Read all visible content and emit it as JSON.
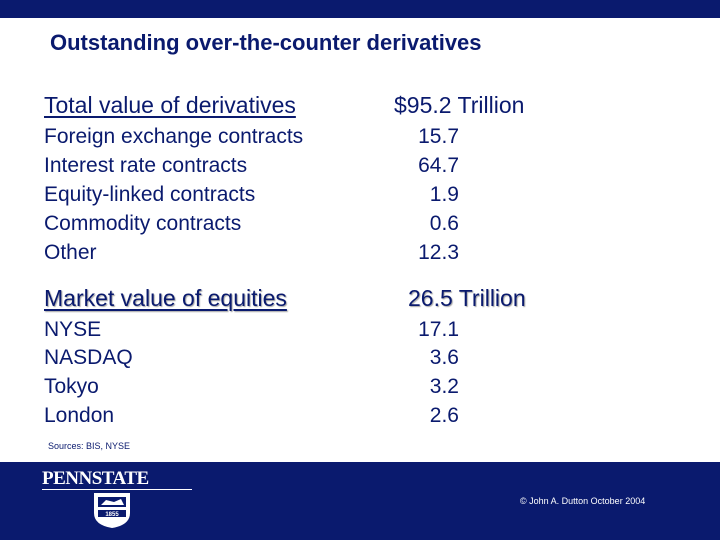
{
  "title": "Outstanding over-the-counter derivatives",
  "derivatives": {
    "heading": "Total value of derivatives",
    "total": "$95.2 Trillion",
    "rows": [
      {
        "label": "Foreign exchange contracts",
        "value": "15.7"
      },
      {
        "label": "Interest rate contracts",
        "value": "64.7"
      },
      {
        "label": "Equity-linked contracts",
        "value": "1.9"
      },
      {
        "label": "Commodity contracts",
        "value": "0.6"
      },
      {
        "label": "Other",
        "value": "12.3"
      }
    ]
  },
  "equities": {
    "heading": "Market value of equities",
    "total": "26.5 Trillion",
    "rows": [
      {
        "label": "NYSE",
        "value": "17.1"
      },
      {
        "label": "NASDAQ",
        "value": "3.6"
      },
      {
        "label": "Tokyo",
        "value": "3.2"
      },
      {
        "label": "London",
        "value": "2.6"
      }
    ]
  },
  "sources": "Sources: BIS, NYSE",
  "footer": {
    "logo_text": "PENNSTATE",
    "shield_text": "1855",
    "copyright": "© John A. Dutton October 2004"
  },
  "colors": {
    "brand_navy": "#0a1a6e",
    "background": "#ffffff"
  }
}
